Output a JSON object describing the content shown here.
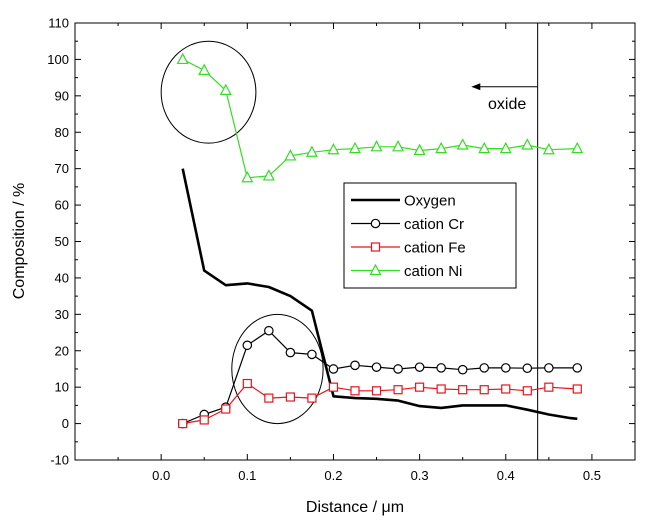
{
  "chart_data": {
    "type": "line",
    "title": "",
    "xlabel": "Distance / μm",
    "ylabel": "Composition / %",
    "xlim": [
      -0.1,
      0.55
    ],
    "ylim": [
      -10,
      110
    ],
    "xticks": [
      0.0,
      0.1,
      0.2,
      0.3,
      0.4,
      0.5
    ],
    "xtick_labels": [
      "0.0",
      "0.1",
      "0.2",
      "0.3",
      "0.4",
      "0.5"
    ],
    "yticks": [
      -10,
      0,
      10,
      20,
      30,
      40,
      50,
      60,
      70,
      80,
      90,
      100,
      110
    ],
    "ytick_labels": [
      "-10",
      "0",
      "10",
      "20",
      "30",
      "40",
      "50",
      "60",
      "70",
      "80",
      "90",
      "100",
      "110"
    ],
    "grid": false,
    "legend_position": "center-right",
    "series": [
      {
        "name": "Oxygen",
        "color": "#000000",
        "marker": "none",
        "x": [
          0.025,
          0.05,
          0.075,
          0.1,
          0.125,
          0.15,
          0.175,
          0.2,
          0.225,
          0.25,
          0.275,
          0.3,
          0.325,
          0.35,
          0.375,
          0.4,
          0.425,
          0.45,
          0.475,
          0.483
        ],
        "y": [
          70,
          42,
          38,
          38.5,
          37.5,
          35,
          31,
          7.5,
          7,
          6.8,
          6.3,
          4.8,
          4.3,
          5,
          5,
          5,
          3.8,
          2.5,
          1.5,
          1.3
        ]
      },
      {
        "name": "cation Cr",
        "color": "#000000",
        "marker": "circle",
        "x": [
          0.025,
          0.05,
          0.075,
          0.1,
          0.125,
          0.15,
          0.175,
          0.2,
          0.225,
          0.25,
          0.275,
          0.3,
          0.325,
          0.35,
          0.375,
          0.4,
          0.425,
          0.45,
          0.483
        ],
        "y": [
          0,
          2.5,
          4.5,
          21.5,
          25.5,
          19.5,
          19,
          15,
          16,
          15.5,
          15,
          15.5,
          15.3,
          14.8,
          15.3,
          15.3,
          15.2,
          15.3,
          15.3
        ]
      },
      {
        "name": "cation Fe",
        "color": "#e8141c",
        "marker": "square",
        "x": [
          0.025,
          0.05,
          0.075,
          0.1,
          0.125,
          0.15,
          0.175,
          0.2,
          0.225,
          0.25,
          0.275,
          0.3,
          0.325,
          0.35,
          0.375,
          0.4,
          0.425,
          0.45,
          0.483
        ],
        "y": [
          0,
          1,
          4,
          11,
          7,
          7.3,
          7,
          10,
          9,
          9,
          9.3,
          10,
          9.5,
          9.3,
          9.3,
          9.5,
          9,
          10,
          9.5
        ]
      },
      {
        "name": "cation Ni",
        "color": "#33dd22",
        "marker": "triangle",
        "x": [
          0.025,
          0.05,
          0.075,
          0.1,
          0.125,
          0.15,
          0.175,
          0.2,
          0.225,
          0.25,
          0.275,
          0.3,
          0.325,
          0.35,
          0.375,
          0.4,
          0.425,
          0.45,
          0.483
        ],
        "y": [
          100,
          97,
          91.5,
          67.5,
          68,
          73.5,
          74.5,
          75.2,
          75.5,
          76,
          76,
          75,
          75.5,
          76.5,
          75.5,
          75.5,
          76.5,
          75.2,
          75.5
        ]
      }
    ],
    "annotations": {
      "vline_x": 0.437,
      "oxide_label": "oxide",
      "arrow": {
        "from_x": 0.437,
        "to_x": 0.36,
        "y": 92.5
      },
      "circles": [
        {
          "cx": 0.055,
          "cy": 91,
          "rx": 0.055,
          "ry": 14
        },
        {
          "cx": 0.135,
          "cy": 15,
          "rx": 0.053,
          "ry": 15
        }
      ]
    }
  }
}
